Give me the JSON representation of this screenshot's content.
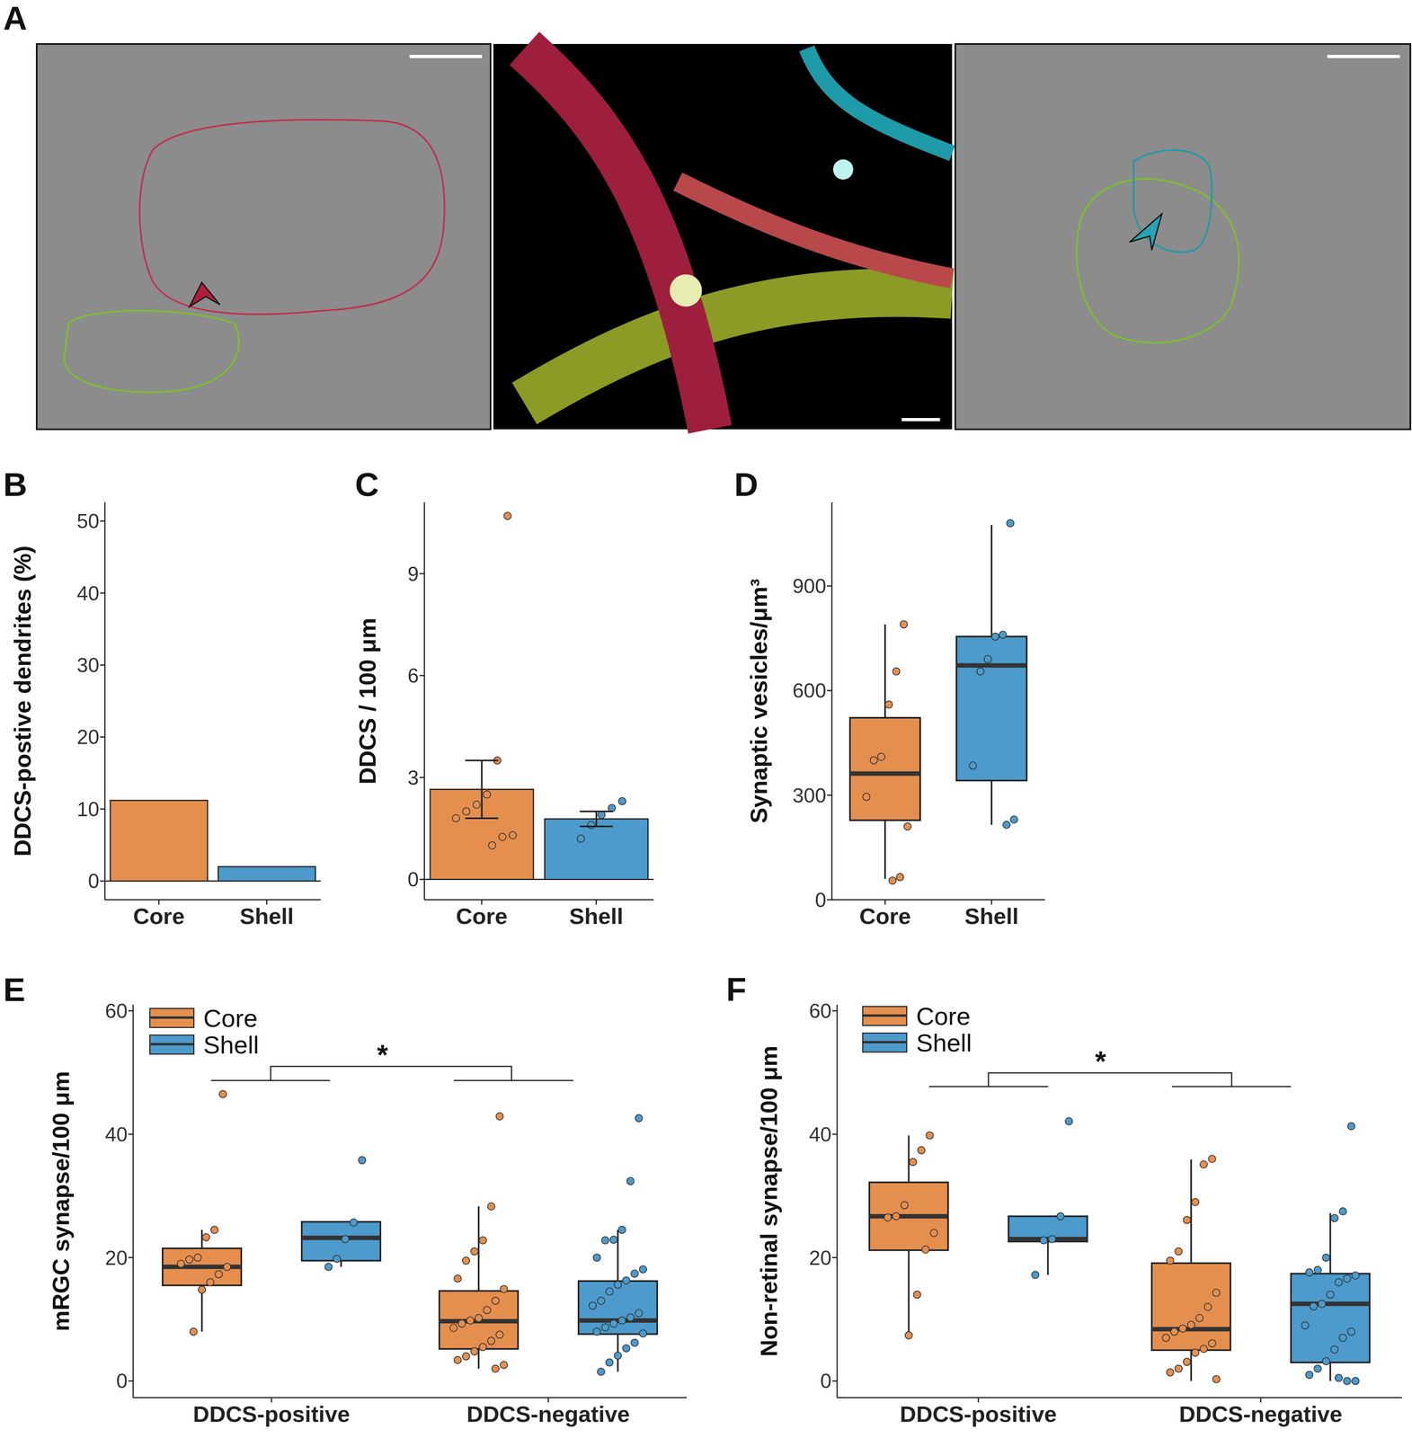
{
  "image_panel": {
    "panel": "A"
  },
  "chart_data": [
    {
      "panel": "B",
      "type": "bar",
      "categories": [
        "Core",
        "Shell"
      ],
      "values": [
        11.2,
        2.0
      ],
      "colors": [
        "#e58f4f",
        "#4c9bcc"
      ],
      "y_label": "DDCS-postive dendrites (%)",
      "ylim": [
        -2.6,
        52.6
      ],
      "yticks": [
        0,
        10,
        20,
        30,
        40,
        50
      ]
    },
    {
      "panel": "C",
      "type": "bar",
      "categories": [
        "Core",
        "Shell"
      ],
      "values": [
        2.65,
        1.78
      ],
      "errors": [
        0.85,
        0.22
      ],
      "points": [
        [
          10.7,
          3.5,
          2.5,
          2.2,
          2.0,
          1.8,
          1.3,
          1.25,
          1.0
        ],
        [
          2.3,
          2.1,
          1.9,
          1.6,
          1.2
        ]
      ],
      "colors": [
        "#e58f4f",
        "#4c9bcc"
      ],
      "y_label": "DDCS / 100 μm",
      "ylim": [
        -0.6,
        11.1
      ],
      "yticks": [
        0,
        3,
        6,
        9
      ]
    },
    {
      "panel": "D",
      "type": "box",
      "categories": [
        "Core",
        "Shell"
      ],
      "boxes": [
        {
          "low": 60,
          "q1": 228,
          "median": 362,
          "q3": 522,
          "high": 790
        },
        {
          "low": 215,
          "q1": 342,
          "median": 672,
          "q3": 755,
          "high": 1075
        }
      ],
      "points": [
        [
          790,
          655,
          560,
          410,
          400,
          295,
          210,
          65,
          55
        ],
        [
          1080,
          760,
          755,
          690,
          655,
          385,
          230,
          215
        ]
      ],
      "colors": [
        "#e58f4f",
        "#4c9bcc"
      ],
      "y_label": "Synaptic vesicles/μm³",
      "ylim": [
        0,
        1140
      ],
      "yticks": [
        0,
        300,
        600,
        900
      ]
    },
    {
      "panel": "E",
      "type": "box",
      "categories": [
        "DDCS-positive",
        "DDCS-negative"
      ],
      "series": [
        {
          "name": "Core",
          "color": "#e58f4f",
          "boxes": [
            {
              "low": 8,
              "q1": 15.5,
              "median": 18.5,
              "q3": 21.5,
              "high": 24.5
            },
            {
              "low": 2,
              "q1": 5.2,
              "median": 9.7,
              "q3": 14.6,
              "high": 28.3
            }
          ],
          "points": [
            [
              46.5,
              24.5,
              23.3,
              20.0,
              19.7,
              19.0,
              18.5,
              17.3,
              16.0,
              14.8,
              8.0
            ],
            [
              42.9,
              28.3,
              22.8,
              21.0,
              19.5,
              16.6,
              14.9,
              13.0,
              11.5,
              10.2,
              9.8,
              9.3,
              8.6,
              7.5,
              6.5,
              5.5,
              4.8,
              4.0,
              3.4,
              2.6,
              2.0
            ]
          ]
        },
        {
          "name": "Shell",
          "color": "#4c9bcc",
          "boxes": [
            {
              "low": 18.5,
              "q1": 19.5,
              "median": 23.2,
              "q3": 25.8,
              "high": 25.8
            },
            {
              "low": 1.5,
              "q1": 7.6,
              "median": 9.8,
              "q3": 16.2,
              "high": 24.5
            }
          ],
          "points": [
            [
              35.8,
              25.7,
              23.0,
              19.8,
              18.5
            ],
            [
              42.6,
              32.4,
              24.5,
              22.9,
              22.8,
              20.0,
              18.1,
              17.4,
              16.3,
              15.6,
              14.5,
              13.0,
              12.2,
              11.0,
              10.3,
              9.8,
              9.3,
              8.7,
              8.0,
              7.7,
              6.2,
              5.3,
              4.1,
              3.0,
              1.5
            ]
          ]
        }
      ],
      "legend": "upper left",
      "y_label": "mRGC synapse/100 μm",
      "ylim": [
        -2.7,
        61
      ],
      "yticks": [
        0,
        20,
        40,
        60
      ],
      "annotations": [
        {
          "text": "*"
        }
      ]
    },
    {
      "panel": "F",
      "type": "box",
      "categories": [
        "DDCS-positive",
        "DDCS-negative"
      ],
      "series": [
        {
          "name": "Core",
          "color": "#e58f4f",
          "boxes": [
            {
              "low": 7.5,
              "q1": 21.2,
              "median": 26.7,
              "q3": 32.2,
              "high": 39.8
            },
            {
              "low": 0,
              "q1": 5.0,
              "median": 8.4,
              "q3": 19.1,
              "high": 35.9
            }
          ],
          "points": [
            [
              39.8,
              37.4,
              35.5,
              28.5,
              26.7,
              26.5,
              24.0,
              21.3,
              14.0,
              7.4
            ],
            [
              36.0,
              35.1,
              29.0,
              26.1,
              21.0,
              19.5,
              14.3,
              12.0,
              10.2,
              9.1,
              8.5,
              8.0,
              7.0,
              6.1,
              5.2,
              4.6,
              3.1,
              2.0,
              1.4,
              0.3
            ]
          ]
        },
        {
          "name": "Shell",
          "color": "#4c9bcc",
          "boxes": [
            {
              "low": 17.2,
              "q1": 22.6,
              "median": 23.0,
              "q3": 26.7,
              "high": 26.7
            },
            {
              "low": 0,
              "q1": 3.0,
              "median": 12.5,
              "q3": 17.4,
              "high": 27.2
            }
          ],
          "points": [
            [
              42.1,
              26.7,
              23.0,
              22.8,
              17.2
            ],
            [
              41.3,
              27.5,
              26.4,
              20.0,
              18.0,
              17.6,
              17.1,
              16.6,
              16.0,
              14.0,
              12.5,
              12.1,
              9.0,
              8.0,
              7.0,
              5.1,
              3.2,
              2.0,
              1.0,
              0.0,
              0.0,
              0.5
            ]
          ]
        }
      ],
      "legend": "upper left",
      "y_label": "Non-retinal synapse/100 μm",
      "ylim": [
        -2.7,
        61
      ],
      "yticks": [
        0,
        20,
        40,
        60
      ],
      "annotations": [
        {
          "text": "*"
        }
      ]
    }
  ]
}
